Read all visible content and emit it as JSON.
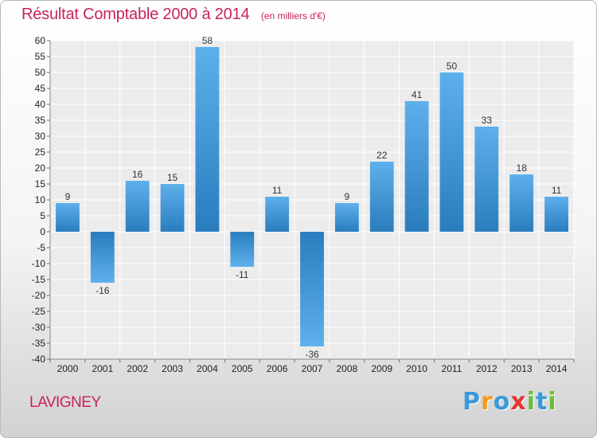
{
  "chart_data": {
    "type": "bar",
    "title": "Résultat Comptable 2000 à 2014",
    "subtitle": "(en milliers d'€)",
    "categories": [
      "2000",
      "2001",
      "2002",
      "2003",
      "2004",
      "2005",
      "2006",
      "2007",
      "2008",
      "2009",
      "2010",
      "2011",
      "2012",
      "2013",
      "2014"
    ],
    "values": [
      9,
      -16,
      16,
      15,
      58,
      -11,
      11,
      -36,
      9,
      22,
      41,
      50,
      33,
      18,
      11
    ],
    "value_labels": [
      "9",
      "-16",
      "16",
      "15",
      "58",
      "-11",
      "11",
      "-36",
      "9",
      "22",
      "41",
      "50",
      "33",
      "18",
      "11"
    ],
    "ylim": [
      -40,
      60
    ],
    "yticks": [
      -40,
      -35,
      -30,
      -25,
      -20,
      -15,
      -10,
      -5,
      0,
      5,
      10,
      15,
      20,
      25,
      30,
      35,
      40,
      45,
      50,
      55,
      60
    ],
    "grid": true,
    "xlabel": "",
    "ylabel": "",
    "bar_color_light": "#5eb0ec",
    "bar_color_dark": "#2a7dbd"
  },
  "location": "LAVIGNEY",
  "logo": {
    "letters": [
      "P",
      "r",
      "o",
      "x",
      "i",
      "t",
      "i"
    ],
    "colors": [
      "#3a9ad9",
      "#f29a1e",
      "#3a9ad9",
      "#e2352f",
      "#6abd3c",
      "#3a9ad9",
      "#6abd3c"
    ]
  }
}
